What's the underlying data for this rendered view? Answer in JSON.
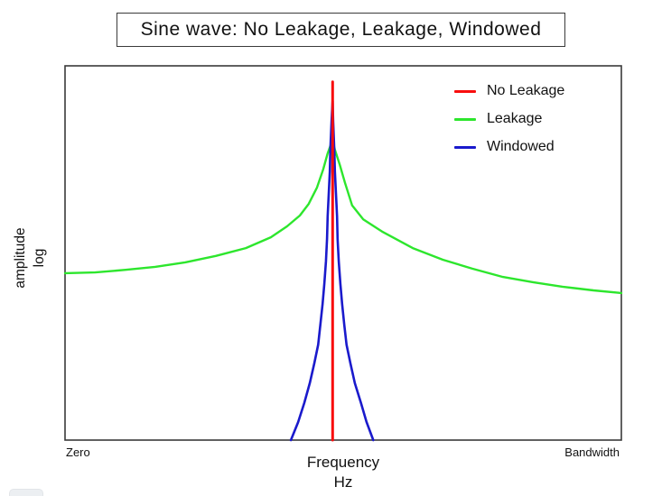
{
  "title": {
    "text": "Sine wave: No Leakage, Leakage, Windowed"
  },
  "legend": {
    "items": [
      {
        "label": "No Leakage",
        "color": "#f80e0e"
      },
      {
        "label": "Leakage",
        "color": "#2de62d"
      },
      {
        "label": "Windowed",
        "color": "#1a1acc"
      }
    ]
  },
  "axis_labels": {
    "y_line1": "amplitude",
    "y_line2": "log",
    "x_title": "Frequency",
    "x_unit": "Hz",
    "x_min": "Zero",
    "x_max": "Bandwidth"
  },
  "colors": {
    "plot_border": "#3a3a3a",
    "background": "#ffffff",
    "partial_pill": "#eceff2"
  },
  "chart_data": {
    "type": "line",
    "title": "Sine wave: No Leakage, Leakage, Windowed",
    "xlabel": "Frequency (Hz)",
    "ylabel": "amplitude (log)",
    "y_scale": "log",
    "grid": false,
    "legend_position": "top-right",
    "x_axis_endpoints": [
      "Zero",
      "Bandwidth"
    ],
    "coordinate_note": "No numeric ticks shown; points are fractions of the axes (x: 0=Zero edge, 1=Bandwidth edge; y: 0=axis bottom, 1=axis top). Peak centered at x=0.481.",
    "series": [
      {
        "name": "Leakage",
        "color": "#2de62d",
        "width": 2.4,
        "points": [
          [
            0.0,
            0.446
          ],
          [
            0.054,
            0.448
          ],
          [
            0.109,
            0.455
          ],
          [
            0.162,
            0.463
          ],
          [
            0.216,
            0.475
          ],
          [
            0.271,
            0.492
          ],
          [
            0.325,
            0.513
          ],
          [
            0.37,
            0.542
          ],
          [
            0.399,
            0.571
          ],
          [
            0.422,
            0.6
          ],
          [
            0.438,
            0.631
          ],
          [
            0.453,
            0.675
          ],
          [
            0.464,
            0.723
          ],
          [
            0.472,
            0.766
          ],
          [
            0.479,
            0.795
          ],
          [
            0.481,
            0.798
          ],
          [
            0.485,
            0.776
          ],
          [
            0.494,
            0.735
          ],
          [
            0.503,
            0.689
          ],
          [
            0.516,
            0.627
          ],
          [
            0.536,
            0.59
          ],
          [
            0.57,
            0.557
          ],
          [
            0.625,
            0.513
          ],
          [
            0.679,
            0.482
          ],
          [
            0.732,
            0.458
          ],
          [
            0.787,
            0.436
          ],
          [
            0.841,
            0.422
          ],
          [
            0.894,
            0.41
          ],
          [
            0.95,
            0.4
          ],
          [
            1.0,
            0.393
          ]
        ]
      },
      {
        "name": "Windowed",
        "color": "#1a1acc",
        "width": 2.6,
        "points": [
          [
            0.406,
            0.0
          ],
          [
            0.419,
            0.048
          ],
          [
            0.43,
            0.099
          ],
          [
            0.44,
            0.152
          ],
          [
            0.448,
            0.205
          ],
          [
            0.455,
            0.255
          ],
          [
            0.459,
            0.308
          ],
          [
            0.463,
            0.364
          ],
          [
            0.466,
            0.417
          ],
          [
            0.469,
            0.477
          ],
          [
            0.471,
            0.537
          ],
          [
            0.472,
            0.598
          ],
          [
            0.474,
            0.658
          ],
          [
            0.476,
            0.718
          ],
          [
            0.477,
            0.778
          ],
          [
            0.479,
            0.851
          ],
          [
            0.481,
            0.906
          ],
          [
            0.482,
            0.851
          ],
          [
            0.484,
            0.778
          ],
          [
            0.485,
            0.718
          ],
          [
            0.487,
            0.658
          ],
          [
            0.489,
            0.598
          ],
          [
            0.49,
            0.537
          ],
          [
            0.492,
            0.477
          ],
          [
            0.495,
            0.417
          ],
          [
            0.498,
            0.364
          ],
          [
            0.502,
            0.308
          ],
          [
            0.506,
            0.255
          ],
          [
            0.513,
            0.205
          ],
          [
            0.521,
            0.152
          ],
          [
            0.532,
            0.099
          ],
          [
            0.542,
            0.048
          ],
          [
            0.554,
            0.0
          ]
        ]
      },
      {
        "name": "No Leakage",
        "color": "#f80e0e",
        "width": 3,
        "points": [
          [
            0.481,
            0.0
          ],
          [
            0.481,
            0.957
          ]
        ]
      }
    ]
  }
}
